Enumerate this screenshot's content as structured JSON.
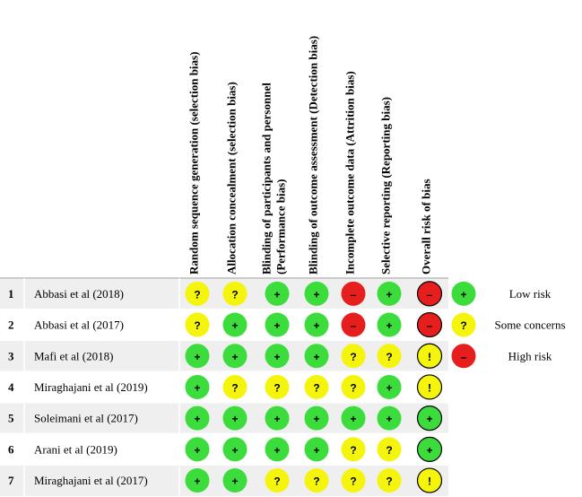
{
  "columns": [
    [
      "Random sequence generation (selection bias)"
    ],
    [
      "Allocation concealment (selection bias)"
    ],
    [
      "Blinding of participants and personnel",
      "(Performance bias)"
    ],
    [
      "Blinding of outcome assessment (Detection bias)"
    ],
    [
      "Incomplete outcome data (Attrition bias)"
    ],
    [
      "Selective reporting (Reporting bias)"
    ],
    [
      "Overall risk of bias"
    ]
  ],
  "rows": [
    {
      "number": "1",
      "study": "Abbasi et al (2018)",
      "judgments": [
        "?",
        "?",
        "+",
        "+",
        "–",
        "+",
        "–"
      ]
    },
    {
      "number": "2",
      "study": "Abbasi et al (2017)",
      "judgments": [
        "?",
        "+",
        "+",
        "+",
        "–",
        "+",
        "–"
      ]
    },
    {
      "number": "3",
      "study": "Mafi et al (2018)",
      "judgments": [
        "+",
        "+",
        "+",
        "+",
        "?",
        "?",
        "!"
      ]
    },
    {
      "number": "4",
      "study": "Miraghajani et al (2019)",
      "judgments": [
        "+",
        "?",
        "?",
        "?",
        "?",
        "+",
        "!"
      ]
    },
    {
      "number": "5",
      "study": "Soleimani et al (2017)",
      "judgments": [
        "+",
        "+",
        "+",
        "+",
        "+",
        "+",
        "+"
      ]
    },
    {
      "number": "6",
      "study": "Arani et al (2019)",
      "judgments": [
        "+",
        "+",
        "+",
        "+",
        "?",
        "?",
        "+"
      ]
    },
    {
      "number": "7",
      "study": "Miraghajani et al (2017)",
      "judgments": [
        "+",
        "+",
        "?",
        "?",
        "?",
        "?",
        "!"
      ]
    }
  ],
  "legend": [
    {
      "symbol": "+",
      "label": "Low risk"
    },
    {
      "symbol": "?",
      "label": "Some concerns"
    },
    {
      "symbol": "–",
      "label": "High risk"
    }
  ],
  "colors": {
    "+": "#3ddc3d",
    "?": "#f4f40c",
    "–": "#e61e1e",
    "!": "#f4f40c"
  }
}
